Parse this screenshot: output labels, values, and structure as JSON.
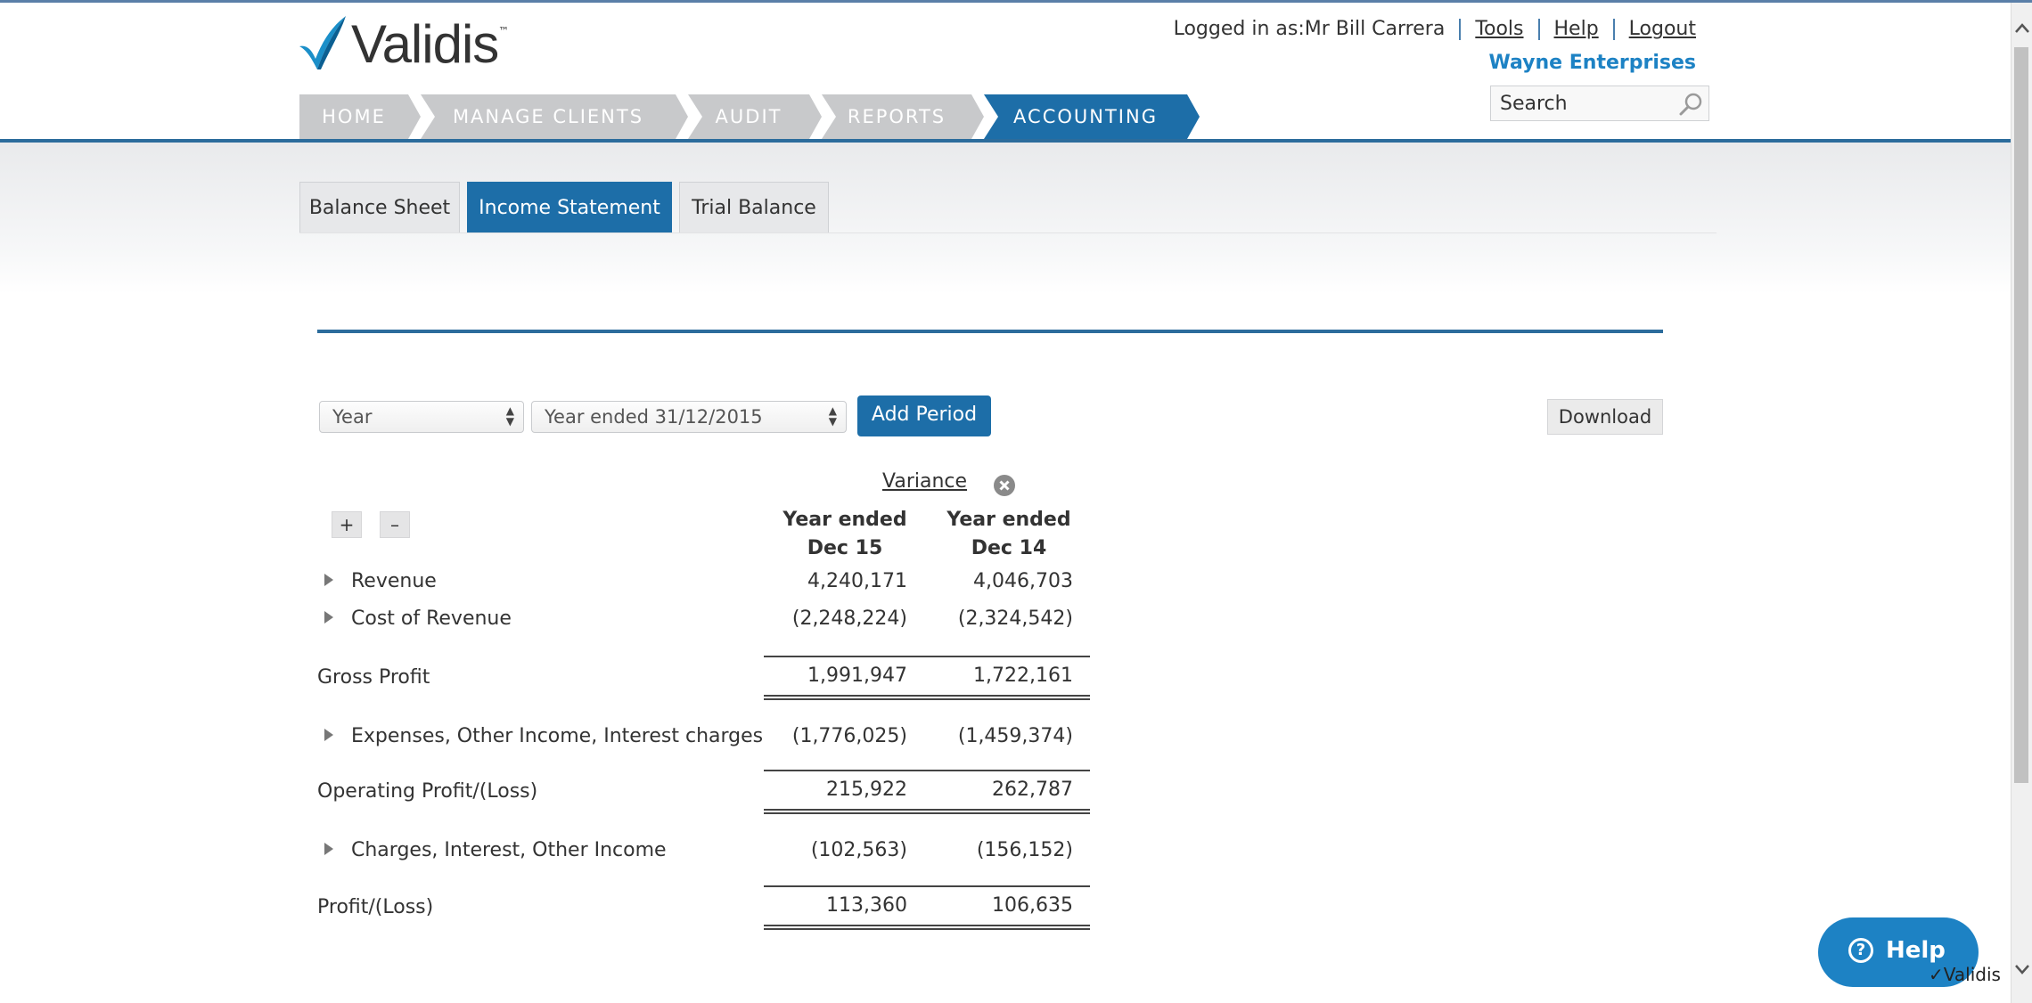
{
  "brand": {
    "name": "Validis",
    "tm": "™"
  },
  "nav": {
    "items": [
      {
        "label": "HOME"
      },
      {
        "label": "MANAGE CLIENTS"
      },
      {
        "label": "AUDIT"
      },
      {
        "label": "REPORTS"
      },
      {
        "label": "ACCOUNTING",
        "active": true
      }
    ]
  },
  "user": {
    "logged_in": "Logged in as:Mr Bill Carrera",
    "tools": "Tools",
    "help": "Help",
    "logout": "Logout",
    "company": "Wayne Enterprises",
    "search_placeholder": "Search"
  },
  "tabs": [
    {
      "label": "Balance Sheet"
    },
    {
      "label": "Income Statement",
      "active": true
    },
    {
      "label": "Trial Balance"
    }
  ],
  "controls": {
    "period_type": "Year",
    "period": "Year ended 31/12/2015",
    "add_period": "Add Period",
    "download": "Download",
    "expand": "+",
    "collapse": "–"
  },
  "statement": {
    "variance_label": "Variance",
    "columns": [
      {
        "line1": "Year ended",
        "line2": "Dec 15"
      },
      {
        "line1": "Year ended",
        "line2": "Dec 14"
      }
    ],
    "rows": [
      {
        "label": "Revenue",
        "expandable": true,
        "values": [
          "4,240,171",
          "4,046,703"
        ]
      },
      {
        "label": "Cost of Revenue",
        "expandable": true,
        "values": [
          "(2,248,224)",
          "(2,324,542)"
        ]
      },
      {
        "label": "Gross Profit",
        "expandable": false,
        "values": [
          "1,991,947",
          "1,722,161"
        ]
      },
      {
        "label": "Expenses, Other Income, Interest charges",
        "expandable": true,
        "values": [
          "(1,776,025)",
          "(1,459,374)"
        ]
      },
      {
        "label": "Operating Profit/(Loss)",
        "expandable": false,
        "values": [
          "215,922",
          "262,787"
        ]
      },
      {
        "label": "Charges, Interest, Other Income",
        "expandable": true,
        "values": [
          "(102,563)",
          "(156,152)"
        ]
      },
      {
        "label": "Profit/(Loss)",
        "expandable": false,
        "values": [
          "113,360",
          "106,635"
        ]
      }
    ]
  },
  "help_widget": {
    "label": "Help",
    "icon": "question-circle-icon"
  },
  "watermark": "Validis",
  "colors": {
    "primary": "#1d6ea8",
    "company": "#1d82c4",
    "nav_inactive": "#c8c9cb"
  }
}
